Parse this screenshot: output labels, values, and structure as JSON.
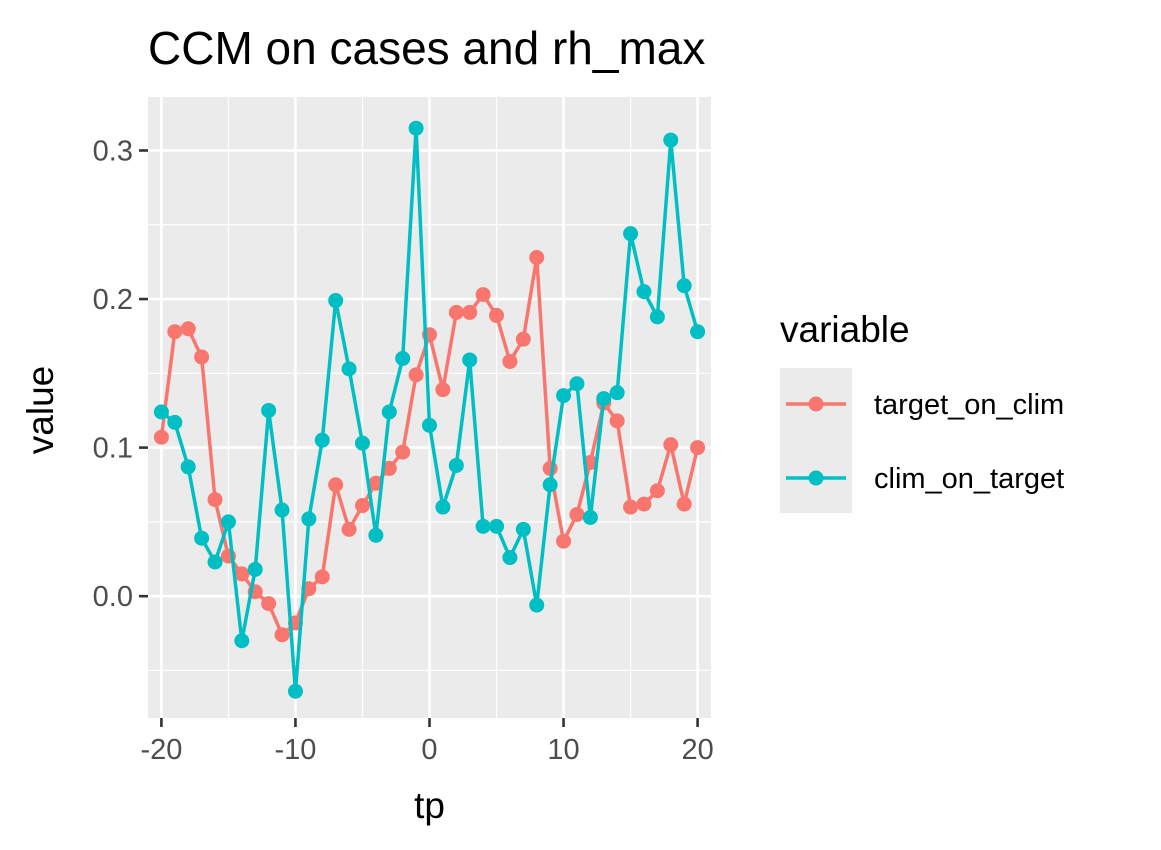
{
  "chart_data": {
    "type": "line",
    "title": "CCM on cases and rh_max",
    "xlabel": "tp",
    "ylabel": "value",
    "xlim": [
      -21,
      21
    ],
    "ylim": [
      -0.082,
      0.336
    ],
    "x_ticks": [
      -20,
      -10,
      0,
      10,
      20
    ],
    "x_tick_labels": [
      "-20",
      "-10",
      "0",
      "10",
      "20"
    ],
    "y_ticks": [
      0.0,
      0.1,
      0.2,
      0.3
    ],
    "y_tick_labels": [
      "0.0",
      "0.1",
      "0.2",
      "0.3"
    ],
    "grid": true,
    "legend": {
      "title": "variable",
      "position": "right"
    },
    "x": [
      -20,
      -19,
      -18,
      -17,
      -16,
      -15,
      -14,
      -13,
      -12,
      -11,
      -10,
      -9,
      -8,
      -7,
      -6,
      -5,
      -4,
      -3,
      -2,
      -1,
      0,
      1,
      2,
      3,
      4,
      5,
      6,
      7,
      8,
      9,
      10,
      11,
      12,
      13,
      14,
      15,
      16,
      17,
      18,
      19,
      20
    ],
    "series": [
      {
        "name": "target_on_clim",
        "color": "#F8766D",
        "values": [
          0.107,
          0.178,
          0.18,
          0.161,
          0.065,
          0.027,
          0.015,
          0.003,
          -0.005,
          -0.026,
          -0.018,
          0.005,
          0.013,
          0.075,
          0.045,
          0.061,
          0.076,
          0.086,
          0.097,
          0.149,
          0.176,
          0.139,
          0.191,
          0.191,
          0.203,
          0.189,
          0.158,
          0.173,
          0.228,
          0.086,
          0.037,
          0.055,
          0.09,
          0.13,
          0.118,
          0.06,
          0.062,
          0.071,
          0.102,
          0.062,
          0.1
        ]
      },
      {
        "name": "clim_on_target",
        "color": "#00BFC4",
        "values": [
          0.124,
          0.117,
          0.087,
          0.039,
          0.023,
          0.05,
          -0.03,
          0.018,
          0.125,
          0.058,
          -0.064,
          0.052,
          0.105,
          0.199,
          0.153,
          0.103,
          0.041,
          0.124,
          0.16,
          0.315,
          0.115,
          0.06,
          0.088,
          0.159,
          0.047,
          0.047,
          0.026,
          0.045,
          -0.006,
          0.075,
          0.135,
          0.143,
          0.053,
          0.133,
          0.137,
          0.244,
          0.205,
          0.188,
          0.307,
          0.209,
          0.178
        ]
      }
    ]
  }
}
